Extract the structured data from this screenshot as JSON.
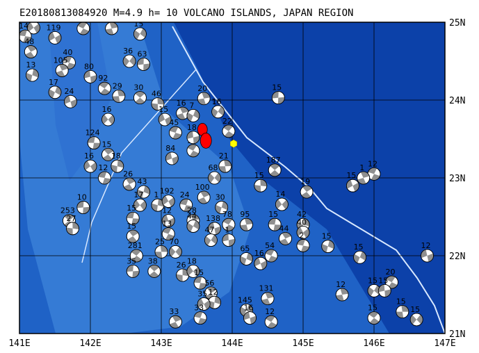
{
  "title": "E20180813084920 M=4.9 h= 10 VOLCANO ISLANDS, JAPAN REGION",
  "map": {
    "lon_range": [
      141,
      147
    ],
    "lat_range": [
      21,
      25
    ],
    "lon_ticks": [
      "141E",
      "142E",
      "143E",
      "144E",
      "145E",
      "146E",
      "147E"
    ],
    "lat_ticks": [
      "21N",
      "22N",
      "23N",
      "24N",
      "25N"
    ],
    "colors": {
      "ocean_deep": "#0c3fa8",
      "ocean_mid": "#1f62c6",
      "ocean_shallow": "#3f86dc",
      "trench_line": "#d8e8ff",
      "grid": "#000000",
      "compression": "#8f8f8f",
      "event_mechanism": "#ff0000",
      "epicenter_marker": "#ffff00"
    },
    "epicenter": {
      "lon": 144.02,
      "lat": 23.44
    },
    "event_mechanism": {
      "lon": 143.6,
      "lat": 23.55
    },
    "mechanisms": [
      {
        "lon": 141.2,
        "lat": 24.93,
        "label": "52"
      },
      {
        "lon": 141.08,
        "lat": 24.82,
        "label": "14"
      },
      {
        "lon": 141.16,
        "lat": 24.62,
        "label": "48"
      },
      {
        "lon": 141.18,
        "lat": 24.32,
        "label": "13"
      },
      {
        "lon": 141.5,
        "lat": 24.8,
        "label": "119"
      },
      {
        "lon": 141.7,
        "lat": 24.48,
        "label": "40"
      },
      {
        "lon": 141.6,
        "lat": 24.38,
        "label": "105"
      },
      {
        "lon": 141.5,
        "lat": 24.1,
        "label": "17"
      },
      {
        "lon": 141.72,
        "lat": 23.98,
        "label": "24"
      },
      {
        "lon": 141.9,
        "lat": 24.92,
        "label": "523"
      },
      {
        "lon": 142.3,
        "lat": 24.92,
        "label": "39"
      },
      {
        "lon": 142.7,
        "lat": 24.85,
        "label": "15"
      },
      {
        "lon": 142.0,
        "lat": 24.3,
        "label": "80"
      },
      {
        "lon": 142.2,
        "lat": 24.15,
        "label": "92"
      },
      {
        "lon": 142.4,
        "lat": 24.05,
        "label": "29"
      },
      {
        "lon": 142.55,
        "lat": 24.5,
        "label": "36"
      },
      {
        "lon": 142.75,
        "lat": 24.46,
        "label": "63"
      },
      {
        "lon": 142.7,
        "lat": 24.03,
        "label": "30"
      },
      {
        "lon": 142.95,
        "lat": 23.95,
        "label": "46"
      },
      {
        "lon": 142.25,
        "lat": 23.75,
        "label": "16"
      },
      {
        "lon": 142.05,
        "lat": 23.45,
        "label": "124"
      },
      {
        "lon": 142.25,
        "lat": 23.3,
        "label": "15"
      },
      {
        "lon": 142.38,
        "lat": 23.15,
        "label": "18"
      },
      {
        "lon": 142.0,
        "lat": 23.15,
        "label": "16"
      },
      {
        "lon": 142.2,
        "lat": 23.0,
        "label": "12"
      },
      {
        "lon": 142.55,
        "lat": 22.92,
        "label": "26"
      },
      {
        "lon": 142.75,
        "lat": 22.82,
        "label": "43"
      },
      {
        "lon": 143.05,
        "lat": 23.75,
        "label": "15"
      },
      {
        "lon": 143.2,
        "lat": 23.58,
        "label": "45"
      },
      {
        "lon": 143.3,
        "lat": 23.83,
        "label": "16"
      },
      {
        "lon": 143.45,
        "lat": 23.8,
        "label": "7"
      },
      {
        "lon": 143.15,
        "lat": 23.25,
        "label": "84"
      },
      {
        "lon": 143.45,
        "lat": 23.35,
        "label": "17"
      },
      {
        "lon": 143.6,
        "lat": 24.02,
        "label": "20"
      },
      {
        "lon": 143.8,
        "lat": 23.85,
        "label": "16"
      },
      {
        "lon": 143.45,
        "lat": 23.52,
        "label": "18"
      },
      {
        "lon": 143.95,
        "lat": 23.6,
        "label": "22"
      },
      {
        "lon": 143.9,
        "lat": 23.15,
        "label": "21"
      },
      {
        "lon": 143.75,
        "lat": 23.0,
        "label": "68"
      },
      {
        "lon": 144.65,
        "lat": 24.03,
        "label": "15"
      },
      {
        "lon": 144.6,
        "lat": 23.1,
        "label": "187"
      },
      {
        "lon": 144.4,
        "lat": 22.9,
        "label": "15"
      },
      {
        "lon": 144.7,
        "lat": 22.66,
        "label": "14"
      },
      {
        "lon": 144.6,
        "lat": 22.4,
        "label": "15"
      },
      {
        "lon": 145.05,
        "lat": 22.82,
        "label": "19"
      },
      {
        "lon": 145.0,
        "lat": 22.4,
        "label": "42"
      },
      {
        "lon": 145.0,
        "lat": 22.3,
        "label": "40"
      },
      {
        "lon": 145.0,
        "lat": 22.13,
        "label": "2"
      },
      {
        "lon": 144.75,
        "lat": 22.22,
        "label": "44"
      },
      {
        "lon": 145.35,
        "lat": 22.12,
        "label": "15"
      },
      {
        "lon": 145.7,
        "lat": 22.9,
        "label": "15"
      },
      {
        "lon": 146.0,
        "lat": 23.05,
        "label": "12"
      },
      {
        "lon": 145.85,
        "lat": 23.0,
        "label": "1"
      },
      {
        "lon": 145.8,
        "lat": 21.98,
        "label": "15"
      },
      {
        "lon": 146.75,
        "lat": 22.0,
        "label": "12"
      },
      {
        "lon": 146.25,
        "lat": 21.66,
        "label": "20"
      },
      {
        "lon": 145.55,
        "lat": 21.5,
        "label": "12"
      },
      {
        "lon": 146.0,
        "lat": 21.55,
        "label": "15"
      },
      {
        "lon": 146.15,
        "lat": 21.55,
        "label": "15"
      },
      {
        "lon": 146.0,
        "lat": 21.2,
        "label": "15"
      },
      {
        "lon": 146.4,
        "lat": 21.28,
        "label": "15"
      },
      {
        "lon": 146.6,
        "lat": 21.18,
        "label": "15"
      },
      {
        "lon": 141.9,
        "lat": 22.62,
        "label": "10"
      },
      {
        "lon": 141.7,
        "lat": 22.45,
        "label": "253"
      },
      {
        "lon": 141.75,
        "lat": 22.35,
        "label": "27"
      },
      {
        "lon": 142.7,
        "lat": 22.65,
        "label": "17"
      },
      {
        "lon": 142.6,
        "lat": 22.48,
        "label": "15"
      },
      {
        "lon": 142.6,
        "lat": 22.25,
        "label": "15"
      },
      {
        "lon": 142.95,
        "lat": 22.65,
        "label": "1"
      },
      {
        "lon": 143.1,
        "lat": 22.7,
        "label": "192"
      },
      {
        "lon": 143.35,
        "lat": 22.65,
        "label": "24"
      },
      {
        "lon": 143.6,
        "lat": 22.75,
        "label": "100"
      },
      {
        "lon": 143.85,
        "lat": 22.62,
        "label": "30"
      },
      {
        "lon": 143.1,
        "lat": 22.45,
        "label": "12"
      },
      {
        "lon": 143.1,
        "lat": 22.28,
        "label": "13"
      },
      {
        "lon": 143.45,
        "lat": 22.45,
        "label": "28"
      },
      {
        "lon": 143.45,
        "lat": 22.38,
        "label": "44"
      },
      {
        "lon": 143.75,
        "lat": 22.35,
        "label": "138"
      },
      {
        "lon": 143.95,
        "lat": 22.4,
        "label": "78"
      },
      {
        "lon": 144.2,
        "lat": 22.4,
        "label": "95"
      },
      {
        "lon": 143.7,
        "lat": 22.2,
        "label": "47"
      },
      {
        "lon": 143.95,
        "lat": 22.2,
        "label": "1"
      },
      {
        "lon": 142.65,
        "lat": 22.0,
        "label": "281"
      },
      {
        "lon": 143.0,
        "lat": 22.05,
        "label": "25"
      },
      {
        "lon": 143.2,
        "lat": 22.05,
        "label": "70"
      },
      {
        "lon": 142.6,
        "lat": 21.8,
        "label": "35"
      },
      {
        "lon": 142.9,
        "lat": 21.8,
        "label": "38"
      },
      {
        "lon": 143.3,
        "lat": 21.75,
        "label": "26"
      },
      {
        "lon": 143.45,
        "lat": 21.8,
        "label": "18"
      },
      {
        "lon": 143.55,
        "lat": 21.65,
        "label": "15"
      },
      {
        "lon": 143.7,
        "lat": 21.52,
        "label": "56"
      },
      {
        "lon": 143.75,
        "lat": 21.4,
        "label": "12"
      },
      {
        "lon": 143.6,
        "lat": 21.38,
        "label": "35"
      },
      {
        "lon": 143.55,
        "lat": 21.2,
        "label": "33"
      },
      {
        "lon": 143.2,
        "lat": 21.15,
        "label": "33"
      },
      {
        "lon": 144.2,
        "lat": 21.96,
        "label": "65"
      },
      {
        "lon": 144.4,
        "lat": 21.9,
        "label": "16"
      },
      {
        "lon": 144.55,
        "lat": 22.0,
        "label": "54"
      },
      {
        "lon": 144.5,
        "lat": 21.45,
        "label": "131"
      },
      {
        "lon": 144.2,
        "lat": 21.3,
        "label": "145"
      },
      {
        "lon": 144.25,
        "lat": 21.2,
        "label": "16"
      },
      {
        "lon": 144.55,
        "lat": 21.15,
        "label": "12"
      }
    ]
  }
}
